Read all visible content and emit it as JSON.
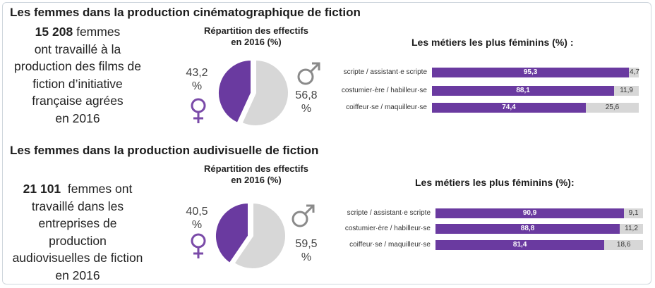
{
  "colors": {
    "women": "#6a3aa0",
    "men": "#d7d7d7",
    "symbol_female": "#7a4aa8",
    "symbol_male": "#8a8a8a"
  },
  "sections": [
    {
      "title": "Les femmes dans la production cinématographique de fiction",
      "summary_number": "15 208",
      "summary_lines": [
        "femmes",
        "ont travaillé à la",
        "production des films de",
        "fiction d’initiative",
        "française agrées",
        "en 2016"
      ],
      "pie_title_line1": "Répartition des effectifs",
      "pie_title_line2": "en 2016 (%)",
      "female_pct_label": "43,2",
      "male_pct_label": "56,8",
      "percent_sign": "%",
      "bars_title": "Les métiers les plus féminins (%) :"
    },
    {
      "title": "Les femmes dans la production audivisuelle de fiction",
      "summary_number": "21 101",
      "summary_lines": [
        "femmes ont",
        "travaillé dans les",
        "entreprises de",
        "production",
        "audiovisuelles de fiction",
        "en 2016"
      ],
      "pie_title_line1": "Répartition des effectifs",
      "pie_title_line2": "en 2016 (%)",
      "female_pct_label": "40,5",
      "male_pct_label": "59,5",
      "percent_sign": "%",
      "bars_title": "Les métiers les plus féminins (%):"
    }
  ],
  "chart_data": [
    {
      "type": "pie",
      "title": "Répartition des effectifs en 2016 (%)",
      "labels": [
        "femmes",
        "hommes"
      ],
      "values": [
        43.2,
        56.8
      ]
    },
    {
      "type": "bar",
      "orientation": "horizontal",
      "stacked": true,
      "title": "Les métiers les plus féminins (%) :",
      "categories": [
        "scripte / assistant·e scripte",
        "costumier·ère / habilleur·se",
        "coiffeur·se / maquilleur·se"
      ],
      "series": [
        {
          "values": [
            95.3,
            88.1,
            74.4
          ],
          "labels": [
            "95,3",
            "88,1",
            "74,4"
          ]
        },
        {
          "values": [
            4.7,
            11.9,
            25.6
          ],
          "labels": [
            "4,7",
            "11,9",
            "25,6"
          ]
        }
      ],
      "xlim": [
        0,
        100
      ]
    },
    {
      "type": "pie",
      "title": "Répartition des effectifs en 2016 (%)",
      "labels": [
        "femmes",
        "hommes"
      ],
      "values": [
        40.5,
        59.5
      ]
    },
    {
      "type": "bar",
      "orientation": "horizontal",
      "stacked": true,
      "title": "Les métiers les plus féminins (%):",
      "categories": [
        "scripte / assistant·e scripte",
        "costumier·ère / habilleur·se",
        "coiffeur·se / maquilleur·se"
      ],
      "series": [
        {
          "values": [
            90.9,
            88.8,
            81.4
          ],
          "labels": [
            "90,9",
            "88,8",
            "81,4"
          ]
        },
        {
          "values": [
            9.1,
            11.2,
            18.6
          ],
          "labels": [
            "9,1",
            "11,2",
            "18,6"
          ]
        }
      ],
      "xlim": [
        0,
        100
      ]
    }
  ]
}
